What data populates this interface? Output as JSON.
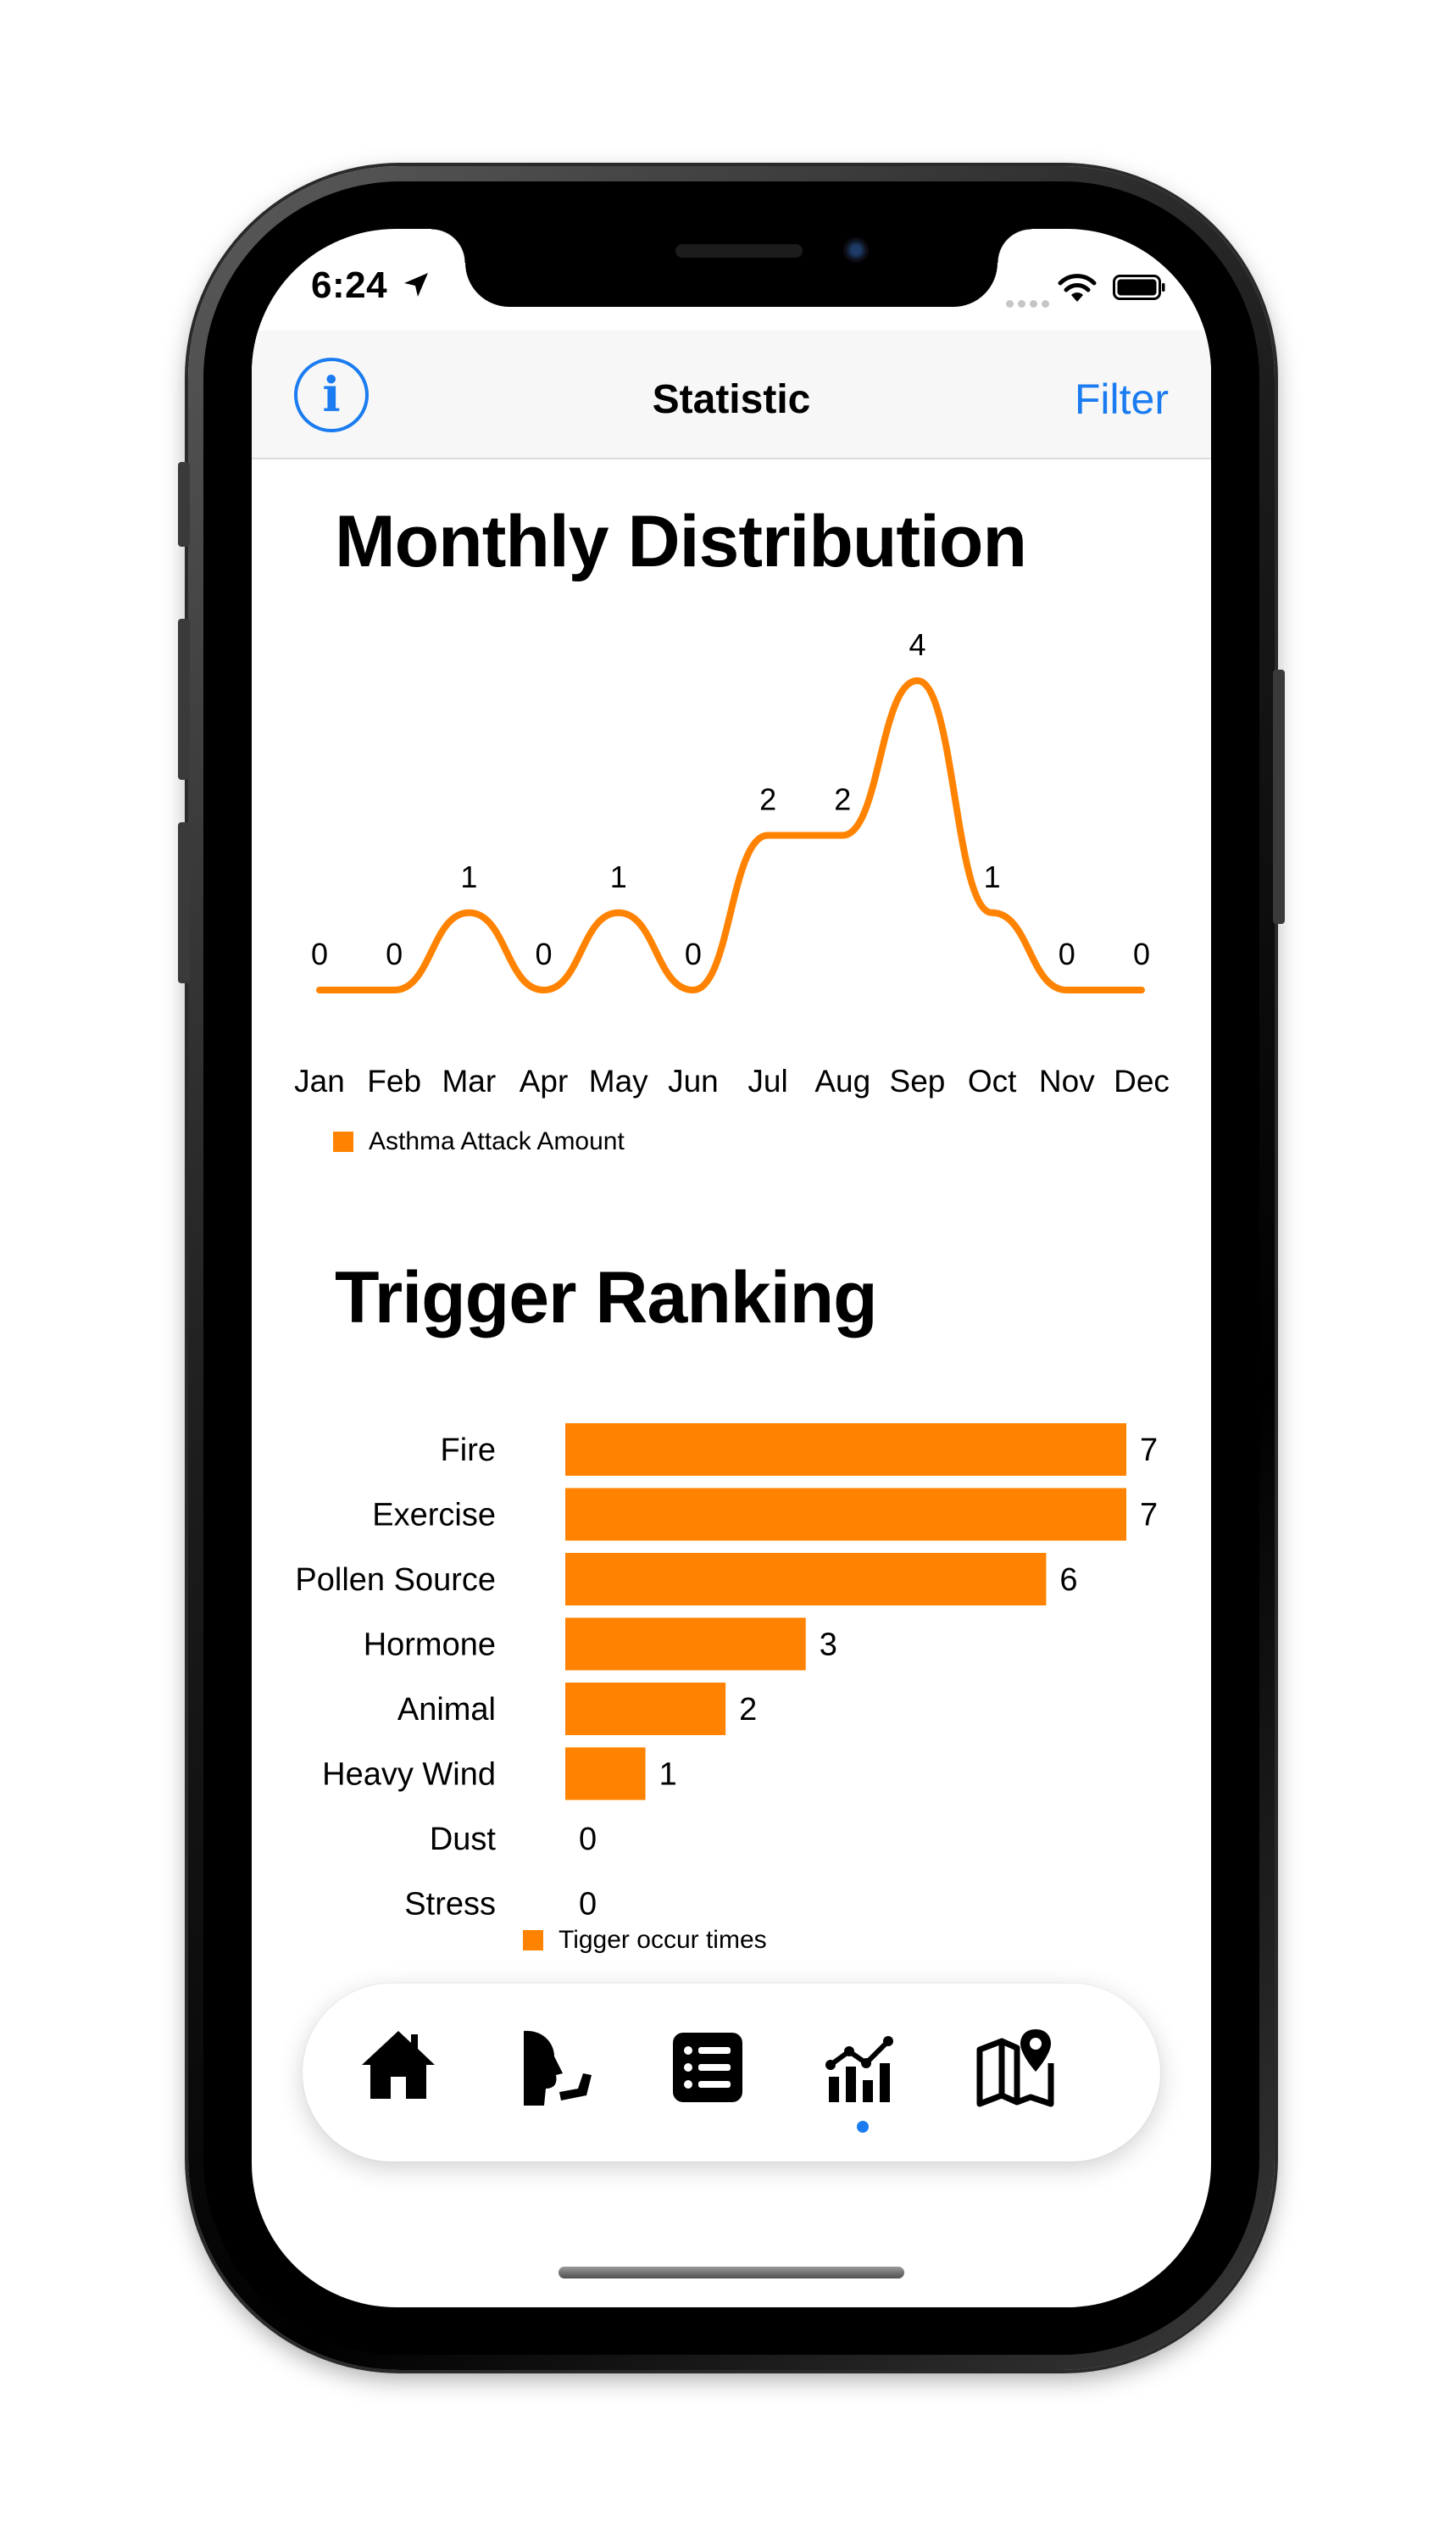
{
  "status_bar": {
    "time": "6:24"
  },
  "nav": {
    "title": "Statistic",
    "filter_label": "Filter",
    "info_glyph": "i"
  },
  "sections": {
    "monthly_title": "Monthly Distribution",
    "trigger_title": "Trigger Ranking"
  },
  "colors": {
    "accent": "#ff8300",
    "link": "#1a7cf0"
  },
  "chart_data": [
    {
      "type": "line",
      "categories": [
        "Jan",
        "Feb",
        "Mar",
        "Apr",
        "May",
        "Jun",
        "Jul",
        "Aug",
        "Sep",
        "Oct",
        "Nov",
        "Dec"
      ],
      "series": [
        {
          "name": "Asthma Attack Amount",
          "values": [
            0,
            0,
            1,
            0,
            1,
            0,
            2,
            2,
            4,
            1,
            0,
            0
          ]
        }
      ],
      "ylim": [
        0,
        4
      ],
      "grid": false,
      "legend": "bottom-left"
    },
    {
      "type": "bar",
      "orientation": "horizontal",
      "categories": [
        "Fire",
        "Exercise",
        "Pollen Source",
        "Hormone",
        "Animal",
        "Heavy Wind",
        "Dust",
        "Stress"
      ],
      "series": [
        {
          "name": "Tigger occur times",
          "values": [
            7,
            7,
            6,
            3,
            2,
            1,
            0,
            0
          ]
        }
      ],
      "xlim": [
        0,
        7
      ],
      "grid": false,
      "legend": "bottom"
    }
  ],
  "tabs": [
    {
      "id": "home",
      "icon": "home-icon"
    },
    {
      "id": "cough",
      "icon": "coughing-person-icon"
    },
    {
      "id": "list",
      "icon": "list-icon"
    },
    {
      "id": "stats",
      "icon": "chart-icon",
      "selected": true
    },
    {
      "id": "map",
      "icon": "map-pin-icon"
    }
  ]
}
